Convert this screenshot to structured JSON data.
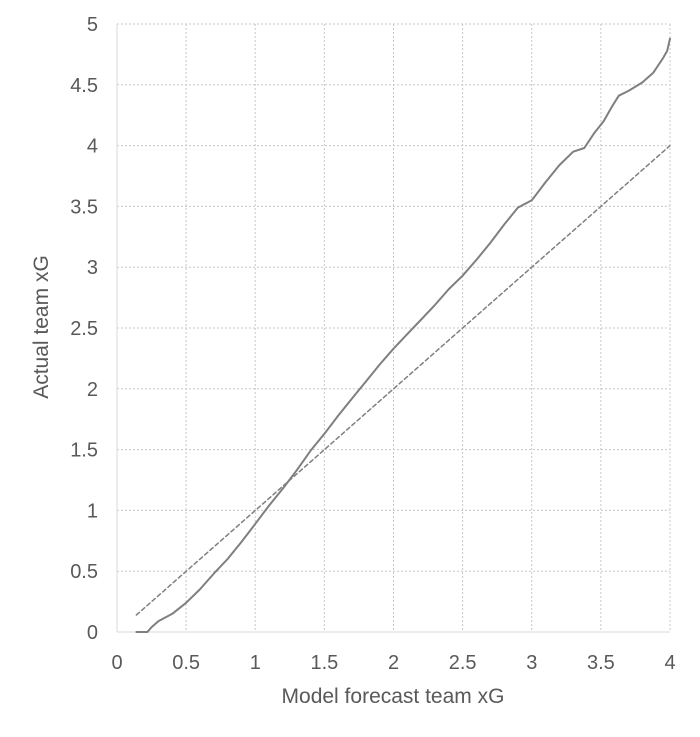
{
  "chart_data": {
    "type": "line",
    "title": "",
    "xlabel": "Model forecast team xG",
    "ylabel": "Actual team xG",
    "xlim": [
      0,
      4
    ],
    "ylim": [
      0,
      5
    ],
    "grid": true,
    "legend": "none",
    "x_ticks": [
      "0",
      "0.5",
      "1",
      "1.5",
      "2",
      "2.5",
      "3",
      "3.5",
      "4"
    ],
    "y_ticks": [
      "0",
      "0.5",
      "1",
      "1.5",
      "2",
      "2.5",
      "3",
      "3.5",
      "4",
      "4.5",
      "5"
    ],
    "x_tick_values": [
      0,
      0.5,
      1,
      1.5,
      2,
      2.5,
      3,
      3.5,
      4
    ],
    "y_tick_values": [
      0,
      0.5,
      1,
      1.5,
      2,
      2.5,
      3,
      3.5,
      4,
      4.5,
      5
    ],
    "series": [
      {
        "style": "solid",
        "color": "#7f7f7f",
        "points": [
          [
            0.14,
            0.0
          ],
          [
            0.22,
            0.0
          ],
          [
            0.25,
            0.04
          ],
          [
            0.3,
            0.09
          ],
          [
            0.4,
            0.15
          ],
          [
            0.5,
            0.24
          ],
          [
            0.6,
            0.35
          ],
          [
            0.7,
            0.48
          ],
          [
            0.8,
            0.6
          ],
          [
            0.9,
            0.74
          ],
          [
            1.0,
            0.89
          ],
          [
            1.1,
            1.04
          ],
          [
            1.2,
            1.18
          ],
          [
            1.3,
            1.33
          ],
          [
            1.4,
            1.49
          ],
          [
            1.5,
            1.63
          ],
          [
            1.6,
            1.78
          ],
          [
            1.7,
            1.92
          ],
          [
            1.8,
            2.06
          ],
          [
            1.9,
            2.2
          ],
          [
            2.0,
            2.33
          ],
          [
            2.1,
            2.45
          ],
          [
            2.2,
            2.57
          ],
          [
            2.3,
            2.69
          ],
          [
            2.4,
            2.82
          ],
          [
            2.5,
            2.93
          ],
          [
            2.6,
            3.06
          ],
          [
            2.7,
            3.2
          ],
          [
            2.8,
            3.35
          ],
          [
            2.9,
            3.49
          ],
          [
            3.0,
            3.55
          ],
          [
            3.1,
            3.7
          ],
          [
            3.2,
            3.84
          ],
          [
            3.3,
            3.95
          ],
          [
            3.38,
            3.98
          ],
          [
            3.45,
            4.1
          ],
          [
            3.52,
            4.2
          ],
          [
            3.58,
            4.32
          ],
          [
            3.63,
            4.41
          ],
          [
            3.7,
            4.45
          ],
          [
            3.8,
            4.52
          ],
          [
            3.88,
            4.6
          ],
          [
            3.95,
            4.72
          ],
          [
            3.98,
            4.78
          ],
          [
            4.0,
            4.88
          ]
        ]
      },
      {
        "style": "dashed",
        "color": "#7f7f7f",
        "points": [
          [
            0.14,
            0.14
          ],
          [
            4.0,
            4.0
          ]
        ]
      }
    ]
  }
}
